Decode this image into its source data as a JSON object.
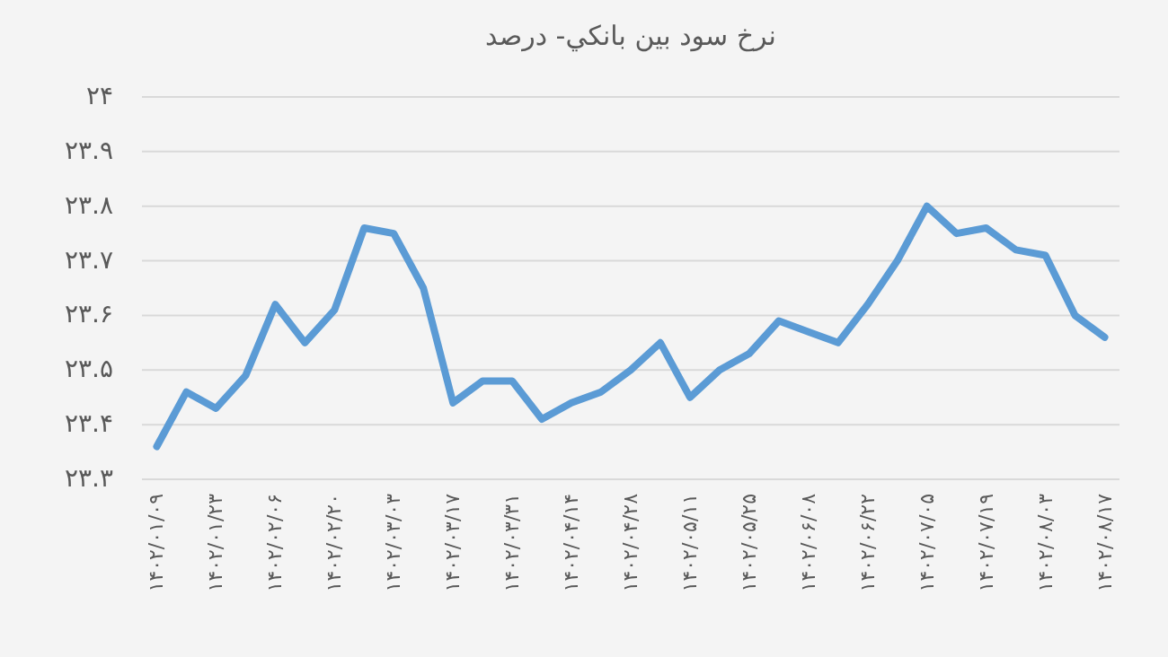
{
  "chart_data": {
    "type": "line",
    "title": "نرخ سود بین بانکي- درصد",
    "categories": [
      "۱۴۰۲/۰۱/۰۹",
      null,
      "۱۴۰۲/۰۱/۲۳",
      null,
      "۱۴۰۲/۰۲/۰۶",
      null,
      "۱۴۰۲/۰۲/۲۰",
      null,
      "۱۴۰۲/۰۳/۰۳",
      null,
      "۱۴۰۲/۰۳/۱۷",
      null,
      "۱۴۰۲/۰۳/۳۱",
      null,
      "۱۴۰۲/۰۴/۱۴",
      null,
      "۱۴۰۲/۰۴/۲۸",
      null,
      "۱۴۰۲/۰۵/۱۱",
      null,
      "۱۴۰۲/۰۵/۲۵",
      null,
      "۱۴۰۲/۰۶/۰۸",
      null,
      "۱۴۰۲/۰۶/۲۲",
      null,
      "۱۴۰۲/۰۷/۰۵",
      null,
      "۱۴۰۲/۰۷/۱۹",
      null,
      "۱۴۰۲/۰۸/۰۳",
      null,
      "۱۴۰۲/۰۸/۱۷"
    ],
    "series": [
      {
        "color": "#5b9bd5",
        "values": [
          23.36,
          23.46,
          23.43,
          23.49,
          23.62,
          23.55,
          23.61,
          23.76,
          23.75,
          23.65,
          23.44,
          23.48,
          23.48,
          23.41,
          23.44,
          23.46,
          23.5,
          23.55,
          23.45,
          23.5,
          23.53,
          23.59,
          23.57,
          23.55,
          23.62,
          23.7,
          23.8,
          23.75,
          23.76,
          23.72,
          23.71,
          23.6,
          23.56
        ]
      }
    ],
    "ylim": [
      23.3,
      24
    ],
    "yticks": [
      {
        "value": 23.3,
        "label": "۲۳.۳"
      },
      {
        "value": 23.4,
        "label": "۲۳.۴"
      },
      {
        "value": 23.5,
        "label": "۲۳.۵"
      },
      {
        "value": 23.6,
        "label": "۲۳.۶"
      },
      {
        "value": 23.7,
        "label": "۲۳.۷"
      },
      {
        "value": 23.8,
        "label": "۲۳.۸"
      },
      {
        "value": 23.9,
        "label": "۲۳.۹"
      },
      {
        "value": 24,
        "label": "۲۴"
      }
    ],
    "grid": "y"
  }
}
